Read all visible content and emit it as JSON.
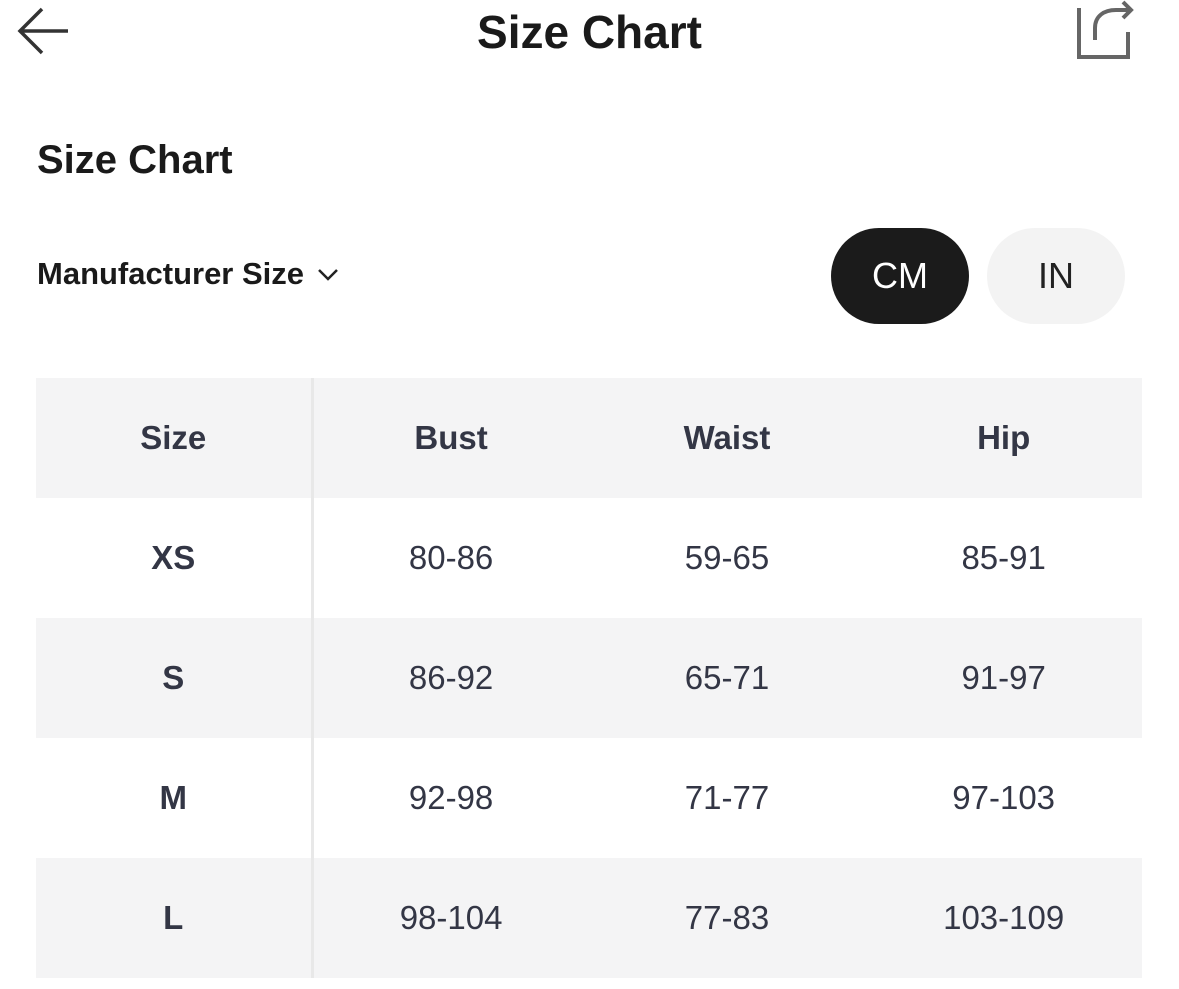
{
  "header": {
    "title": "Size Chart",
    "back_icon": "arrow-left-icon",
    "share_icon": "share-icon"
  },
  "section_title": "Size Chart",
  "size_system": {
    "label": "Manufacturer Size"
  },
  "units": {
    "options": [
      "CM",
      "IN"
    ],
    "selected": "CM"
  },
  "table": {
    "headers": [
      "Size",
      "Bust",
      "Waist",
      "Hip"
    ],
    "rows": [
      [
        "XS",
        "80-86",
        "59-65",
        "85-91"
      ],
      [
        "S",
        "86-92",
        "65-71",
        "91-97"
      ],
      [
        "M",
        "92-98",
        "71-77",
        "97-103"
      ],
      [
        "L",
        "98-104",
        "77-83",
        "103-109"
      ]
    ]
  }
}
